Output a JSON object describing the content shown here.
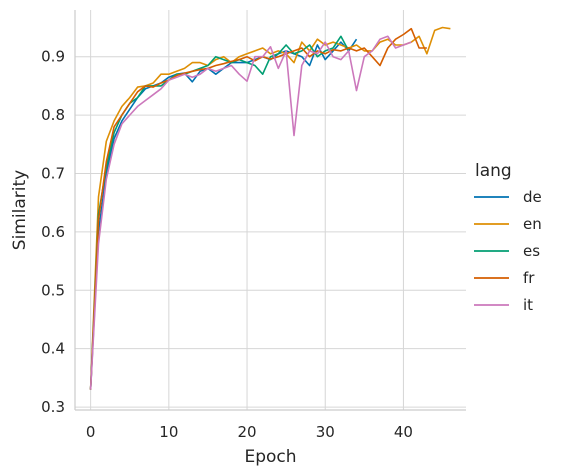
{
  "chart_data": {
    "type": "line",
    "xlabel": "Epoch",
    "ylabel": "Similarity",
    "xlim": [
      -2,
      48
    ],
    "ylim": [
      0.295,
      0.98
    ],
    "xticks": [
      0,
      10,
      20,
      30,
      40
    ],
    "yticks": [
      0.3,
      0.4,
      0.5,
      0.6,
      0.7,
      0.8,
      0.9
    ],
    "grid": true,
    "legend": {
      "title": "lang",
      "placement": "right"
    },
    "series": [
      {
        "name": "de",
        "color": "#0173b2",
        "x": [
          0,
          1,
          2,
          3,
          4,
          5,
          6,
          7,
          8,
          9,
          10,
          11,
          12,
          13,
          14,
          15,
          16,
          17,
          18,
          19,
          20,
          21,
          22,
          23,
          24,
          25,
          26,
          27,
          28,
          29,
          30,
          31,
          32,
          33,
          34
        ],
        "y": [
          0.33,
          0.6,
          0.7,
          0.76,
          0.79,
          0.81,
          0.83,
          0.845,
          0.85,
          0.855,
          0.865,
          0.87,
          0.872,
          0.857,
          0.875,
          0.88,
          0.87,
          0.88,
          0.89,
          0.89,
          0.89,
          0.895,
          0.9,
          0.895,
          0.905,
          0.91,
          0.905,
          0.9,
          0.885,
          0.92,
          0.895,
          0.91,
          0.925,
          0.91,
          0.93
        ]
      },
      {
        "name": "en",
        "color": "#de8f05",
        "x": [
          0,
          1,
          2,
          3,
          4,
          5,
          6,
          7,
          8,
          9,
          10,
          11,
          12,
          13,
          14,
          15,
          16,
          17,
          18,
          19,
          20,
          21,
          22,
          23,
          24,
          25,
          26,
          27,
          28,
          29,
          30,
          31,
          32,
          33,
          34,
          35,
          36,
          37,
          38,
          39,
          40,
          41,
          42,
          43,
          44,
          45,
          46
        ],
        "y": [
          0.33,
          0.66,
          0.755,
          0.79,
          0.815,
          0.83,
          0.848,
          0.85,
          0.855,
          0.87,
          0.87,
          0.875,
          0.88,
          0.89,
          0.89,
          0.885,
          0.895,
          0.9,
          0.89,
          0.9,
          0.905,
          0.91,
          0.915,
          0.905,
          0.91,
          0.905,
          0.89,
          0.925,
          0.91,
          0.93,
          0.92,
          0.925,
          0.92,
          0.915,
          0.92,
          0.91,
          0.91,
          0.925,
          0.93,
          0.92,
          0.92,
          0.925,
          0.935,
          0.905,
          0.945,
          0.95,
          0.948
        ]
      },
      {
        "name": "es",
        "color": "#029e73",
        "x": [
          0,
          1,
          2,
          3,
          4,
          5,
          6,
          7,
          8,
          9,
          10,
          11,
          12,
          13,
          14,
          15,
          16,
          17,
          18,
          19,
          20,
          21,
          22,
          23,
          24,
          25,
          26,
          27,
          28,
          29,
          30,
          31,
          32,
          33
        ],
        "y": [
          0.33,
          0.63,
          0.71,
          0.77,
          0.8,
          0.82,
          0.83,
          0.85,
          0.85,
          0.85,
          0.86,
          0.87,
          0.87,
          0.875,
          0.88,
          0.885,
          0.9,
          0.895,
          0.89,
          0.895,
          0.89,
          0.885,
          0.87,
          0.9,
          0.905,
          0.92,
          0.905,
          0.91,
          0.92,
          0.9,
          0.91,
          0.915,
          0.935,
          0.91
        ]
      },
      {
        "name": "fr",
        "color": "#d55e00",
        "x": [
          0,
          1,
          2,
          3,
          4,
          5,
          6,
          7,
          8,
          9,
          10,
          11,
          12,
          13,
          14,
          15,
          16,
          17,
          18,
          19,
          20,
          21,
          22,
          23,
          24,
          25,
          26,
          27,
          28,
          29,
          30,
          31,
          32,
          33,
          34,
          35,
          36,
          37,
          38,
          39,
          40,
          41,
          42,
          43
        ],
        "y": [
          0.33,
          0.62,
          0.72,
          0.78,
          0.8,
          0.82,
          0.84,
          0.85,
          0.848,
          0.855,
          0.86,
          0.868,
          0.872,
          0.875,
          0.878,
          0.88,
          0.885,
          0.888,
          0.892,
          0.895,
          0.9,
          0.893,
          0.9,
          0.896,
          0.9,
          0.905,
          0.91,
          0.915,
          0.9,
          0.91,
          0.905,
          0.912,
          0.91,
          0.915,
          0.91,
          0.915,
          0.9,
          0.885,
          0.915,
          0.93,
          0.938,
          0.948,
          0.915,
          0.915
        ]
      },
      {
        "name": "it",
        "color": "#cc78bc",
        "x": [
          0,
          1,
          2,
          3,
          4,
          5,
          6,
          7,
          8,
          9,
          10,
          11,
          12,
          13,
          14,
          15,
          16,
          17,
          18,
          19,
          20,
          21,
          22,
          23,
          24,
          25,
          26,
          27,
          28,
          29,
          30,
          31,
          32,
          33,
          34,
          35,
          36,
          37,
          38,
          39,
          40,
          41
        ],
        "y": [
          0.33,
          0.58,
          0.69,
          0.75,
          0.785,
          0.8,
          0.815,
          0.825,
          0.835,
          0.845,
          0.86,
          0.865,
          0.87,
          0.865,
          0.87,
          0.88,
          0.875,
          0.88,
          0.885,
          0.87,
          0.858,
          0.9,
          0.9,
          0.917,
          0.88,
          0.91,
          0.765,
          0.885,
          0.91,
          0.905,
          0.925,
          0.9,
          0.895,
          0.91,
          0.842,
          0.9,
          0.91,
          0.93,
          0.935,
          0.915,
          0.92,
          0.925
        ]
      }
    ]
  }
}
